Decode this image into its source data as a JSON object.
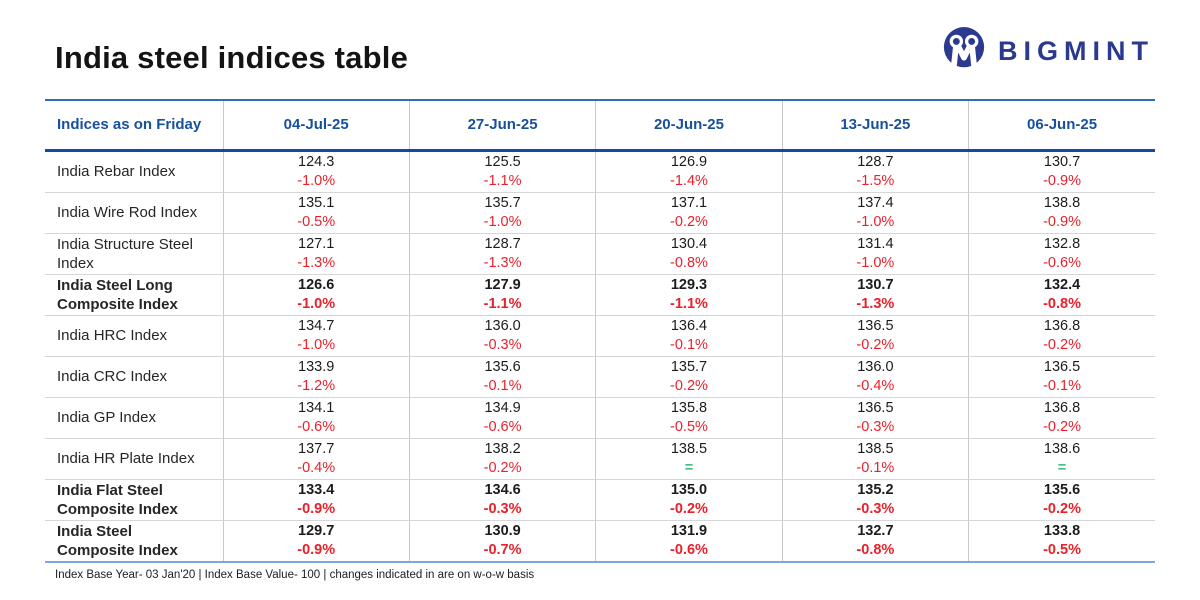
{
  "page": {
    "title": "India steel indices table"
  },
  "brand": {
    "wordmark": "BIGMINT",
    "logo_icon": "bigmint-monogram-icon"
  },
  "table": {
    "corner_header": "Indices as on Friday",
    "date_headers": [
      "04-Jul-25",
      "27-Jun-25",
      "20-Jun-25",
      "13-Jun-25",
      "06-Jun-25"
    ],
    "rows": [
      {
        "label_lines": [
          "India Rebar Index"
        ],
        "bold": false,
        "cells": [
          {
            "value": "124.3",
            "change": "-1.0%"
          },
          {
            "value": "125.5",
            "change": "-1.1%"
          },
          {
            "value": "126.9",
            "change": "-1.4%"
          },
          {
            "value": "128.7",
            "change": "-1.5%"
          },
          {
            "value": "130.7",
            "change": "-0.9%"
          }
        ]
      },
      {
        "label_lines": [
          "India Wire Rod Index"
        ],
        "bold": false,
        "cells": [
          {
            "value": "135.1",
            "change": "-0.5%"
          },
          {
            "value": "135.7",
            "change": "-1.0%"
          },
          {
            "value": "137.1",
            "change": "-0.2%"
          },
          {
            "value": "137.4",
            "change": "-1.0%"
          },
          {
            "value": "138.8",
            "change": "-0.9%"
          }
        ]
      },
      {
        "label_lines": [
          "India Structure Steel Index"
        ],
        "bold": false,
        "cells": [
          {
            "value": "127.1",
            "change": "-1.3%"
          },
          {
            "value": "128.7",
            "change": "-1.3%"
          },
          {
            "value": "130.4",
            "change": "-0.8%"
          },
          {
            "value": "131.4",
            "change": "-1.0%"
          },
          {
            "value": "132.8",
            "change": "-0.6%"
          }
        ]
      },
      {
        "label_lines": [
          "India Steel Long",
          "Composite Index"
        ],
        "bold": true,
        "cells": [
          {
            "value": "126.6",
            "change": "-1.0%"
          },
          {
            "value": "127.9",
            "change": "-1.1%"
          },
          {
            "value": "129.3",
            "change": "-1.1%"
          },
          {
            "value": "130.7",
            "change": "-1.3%"
          },
          {
            "value": "132.4",
            "change": "-0.8%"
          }
        ]
      },
      {
        "label_lines": [
          "India HRC Index"
        ],
        "bold": false,
        "cells": [
          {
            "value": "134.7",
            "change": "-1.0%"
          },
          {
            "value": "136.0",
            "change": "-0.3%"
          },
          {
            "value": "136.4",
            "change": "-0.1%"
          },
          {
            "value": "136.5",
            "change": "-0.2%"
          },
          {
            "value": "136.8",
            "change": "-0.2%"
          }
        ]
      },
      {
        "label_lines": [
          "India CRC Index"
        ],
        "bold": false,
        "cells": [
          {
            "value": "133.9",
            "change": "-1.2%"
          },
          {
            "value": "135.6",
            "change": "-0.1%"
          },
          {
            "value": "135.7",
            "change": "-0.2%"
          },
          {
            "value": "136.0",
            "change": "-0.4%"
          },
          {
            "value": "136.5",
            "change": "-0.1%"
          }
        ]
      },
      {
        "label_lines": [
          "India GP Index"
        ],
        "bold": false,
        "cells": [
          {
            "value": "134.1",
            "change": "-0.6%"
          },
          {
            "value": "134.9",
            "change": "-0.6%"
          },
          {
            "value": "135.8",
            "change": "-0.5%"
          },
          {
            "value": "136.5",
            "change": "-0.3%"
          },
          {
            "value": "136.8",
            "change": "-0.2%"
          }
        ]
      },
      {
        "label_lines": [
          "India HR Plate Index"
        ],
        "bold": false,
        "cells": [
          {
            "value": "137.7",
            "change": "-0.4%"
          },
          {
            "value": "138.2",
            "change": "-0.2%"
          },
          {
            "value": "138.5",
            "change": "="
          },
          {
            "value": "138.5",
            "change": "-0.1%"
          },
          {
            "value": "138.6",
            "change": "="
          }
        ]
      },
      {
        "label_lines": [
          "India Flat Steel",
          "Composite Index"
        ],
        "bold": true,
        "cells": [
          {
            "value": "133.4",
            "change": "-0.9%"
          },
          {
            "value": "134.6",
            "change": "-0.3%"
          },
          {
            "value": "135.0",
            "change": "-0.2%"
          },
          {
            "value": "135.2",
            "change": "-0.3%"
          },
          {
            "value": "135.6",
            "change": "-0.2%"
          }
        ]
      },
      {
        "label_lines": [
          "India Steel",
          "Composite Index"
        ],
        "bold": true,
        "cells": [
          {
            "value": "129.7",
            "change": "-0.9%"
          },
          {
            "value": "130.9",
            "change": "-0.7%"
          },
          {
            "value": "131.9",
            "change": "-0.6%"
          },
          {
            "value": "132.7",
            "change": "-0.8%"
          },
          {
            "value": "133.8",
            "change": "-0.5%"
          }
        ]
      }
    ]
  },
  "footnote": "Index Base Year- 03 Jan'20 | Index Base Value- 100 | changes indicated in are on w-o-w basis",
  "colors": {
    "header_text_blue": "#17509f",
    "brand_navy": "#2b3a8f",
    "negative_red": "#e8212b",
    "neutral_green": "#45bd85",
    "header_border_top": "#2f6fb8",
    "header_border_bottom": "#0c4da3",
    "table_bottom_border": "#7da7dc",
    "row_divider": "#d6d6d6",
    "col_divider": "#c9c9c9"
  }
}
